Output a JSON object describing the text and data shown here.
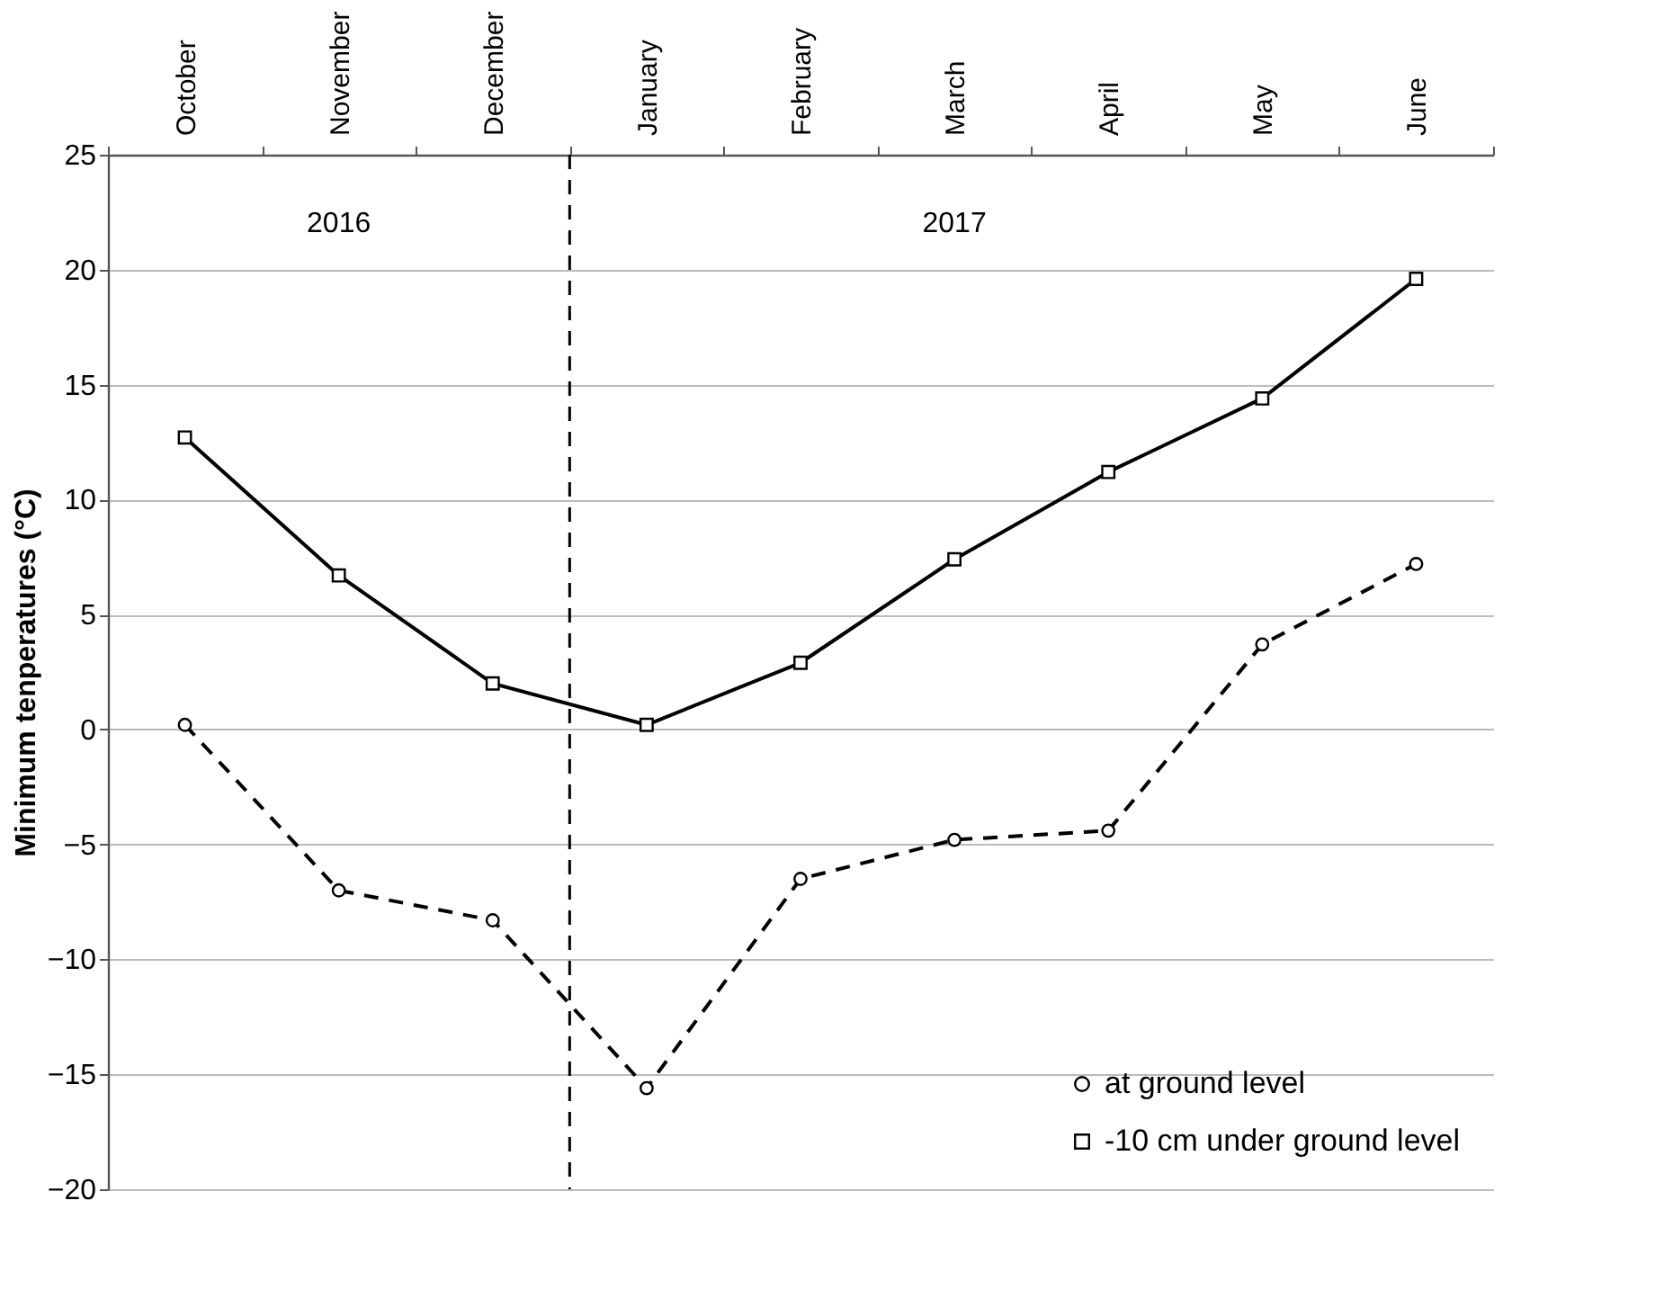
{
  "chart_data": {
    "type": "line",
    "categories": [
      "October",
      "November",
      "December",
      "January",
      "February",
      "March",
      "April",
      "May",
      "June"
    ],
    "ylabel": "Minimum tenperatures (°C)",
    "series": [
      {
        "name": "at ground level",
        "color": "#000000",
        "values": [
          0.2,
          -7.0,
          -8.3,
          -15.6,
          -6.5,
          -4.8,
          -4.4,
          3.7,
          7.2
        ],
        "marker": "circle",
        "line_style": "dashed"
      },
      {
        "name": "-10 cm under ground level",
        "color": "#000000",
        "values": [
          12.7,
          6.7,
          2.0,
          0.2,
          2.9,
          7.4,
          11.2,
          14.4,
          19.6
        ],
        "marker": "square",
        "line_style": "solid"
      }
    ],
    "ylim": [
      -20,
      25
    ],
    "yticks": [
      -20,
      -15,
      -10,
      -5,
      0,
      5,
      10,
      15,
      20,
      25
    ],
    "grid": "y",
    "legend": "bottom right",
    "ref_lines": [
      {
        "axis": "x",
        "value": "January",
        "line_style": "dashed",
        "color": "#000000"
      }
    ],
    "annotations": [
      "2016",
      "2017"
    ]
  }
}
